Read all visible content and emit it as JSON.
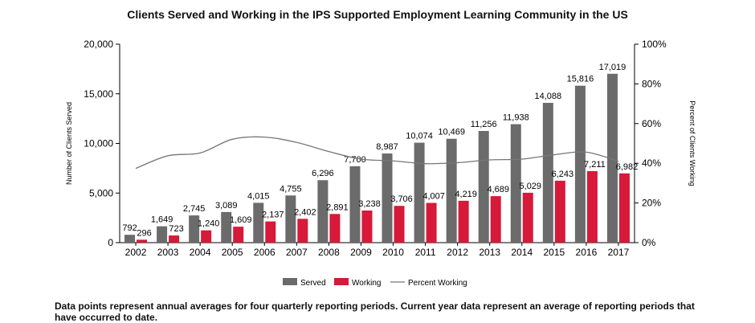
{
  "title": "Clients Served and Working in the IPS Supported Employment Learning Community in the US",
  "footnote": "Data points represent annual averages for four quarterly reporting periods. Current year data represent an average of reporting periods that have occurred to date.",
  "chart_data": {
    "type": "bar",
    "categories": [
      "2002",
      "2003",
      "2004",
      "2005",
      "2006",
      "2007",
      "2008",
      "2009",
      "2010",
      "2011",
      "2012",
      "2013",
      "2014",
      "2015",
      "2016",
      "2017"
    ],
    "series": [
      {
        "name": "Served",
        "type": "bar",
        "axis": "left",
        "color": "#6b6b6b",
        "values": [
          792,
          1649,
          2745,
          3089,
          4015,
          4755,
          6296,
          7700,
          8987,
          10074,
          10469,
          11256,
          11938,
          14088,
          15816,
          17019
        ],
        "labels": [
          "792",
          "1,649",
          "2,745",
          "3,089",
          "4,015",
          "4,755",
          "6,296",
          "7,700",
          "8,987",
          "10,074",
          "10,469",
          "11,256",
          "11,938",
          "14,088",
          "15,816",
          "17,019"
        ]
      },
      {
        "name": "Working",
        "type": "bar",
        "axis": "left",
        "color": "#d7193a",
        "values": [
          296,
          723,
          1240,
          1609,
          2137,
          2402,
          2891,
          3238,
          3706,
          4007,
          4219,
          4689,
          5029,
          6243,
          7211,
          6982
        ],
        "labels": [
          "296",
          "723",
          "1,240",
          "1,609",
          "2,137",
          "2,402",
          "2,891",
          "3,238",
          "3,706",
          "4,007",
          "4,219",
          "4,689",
          "5,029",
          "6,243",
          "7,211",
          "6,982"
        ]
      },
      {
        "name": "Percent Working",
        "type": "line",
        "axis": "right",
        "color": "#777777",
        "values": [
          37.4,
          43.8,
          45.2,
          52.1,
          53.2,
          50.5,
          45.9,
          42.1,
          41.2,
          39.8,
          40.3,
          41.7,
          42.1,
          44.3,
          45.6,
          41.0
        ]
      }
    ],
    "ylabel": "Number of Clients Served",
    "y2label": "Percent of Clients Working",
    "ylim": [
      0,
      20000
    ],
    "y2lim": [
      0,
      100
    ],
    "yticks": [
      "0",
      "5,000",
      "10,000",
      "15,000",
      "20,000"
    ],
    "y2ticks": [
      "0%",
      "20%",
      "40%",
      "60%",
      "80%",
      "100%"
    ],
    "grid": false,
    "legend": "bottom-center"
  }
}
